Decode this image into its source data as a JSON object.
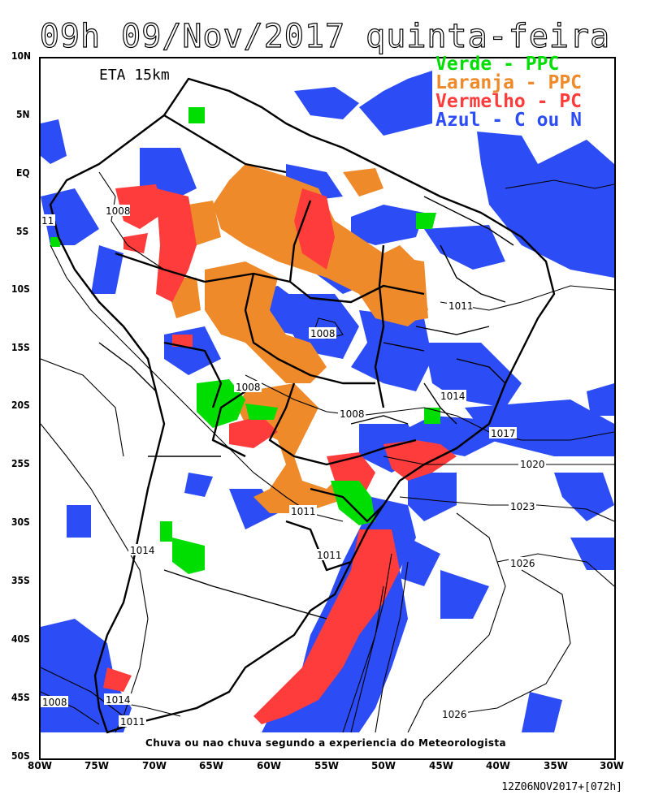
{
  "title": "09h 09/Nov/2017 quinta-feira",
  "model": "ETA 15km",
  "legend": [
    {
      "text": "Verde - PPC",
      "color": "#00dd00"
    },
    {
      "text": "Laranja - PPC",
      "color": "#ee8a2a"
    },
    {
      "text": "Vermelho - PC",
      "color": "#ff3c3c"
    },
    {
      "text": "Azul - C ou N",
      "color": "#2c4cf6"
    }
  ],
  "lat_labels": [
    "10N",
    "5N",
    "EQ",
    "5S",
    "10S",
    "15S",
    "20S",
    "25S",
    "30S",
    "35S",
    "40S",
    "45S",
    "50S"
  ],
  "lon_labels": [
    "80W",
    "75W",
    "70W",
    "65W",
    "60W",
    "55W",
    "50W",
    "45W",
    "40W",
    "35W",
    "30W"
  ],
  "isobar_labels": [
    "1008",
    "11",
    "1011",
    "1008",
    "1008",
    "1008",
    "1014",
    "1017",
    "1020",
    "1023",
    "1011",
    "1014",
    "1011",
    "1026",
    "1008",
    "1014",
    "1011",
    "1026"
  ],
  "caption": "Chuva ou nao chuva segundo a experiencia do Meteorologista",
  "run": "12Z06NOV2017+[072h]",
  "colors": {
    "green": "#00dd00",
    "orange": "#ee8a2a",
    "red": "#ff3c3c",
    "blue": "#2c4cf6"
  }
}
